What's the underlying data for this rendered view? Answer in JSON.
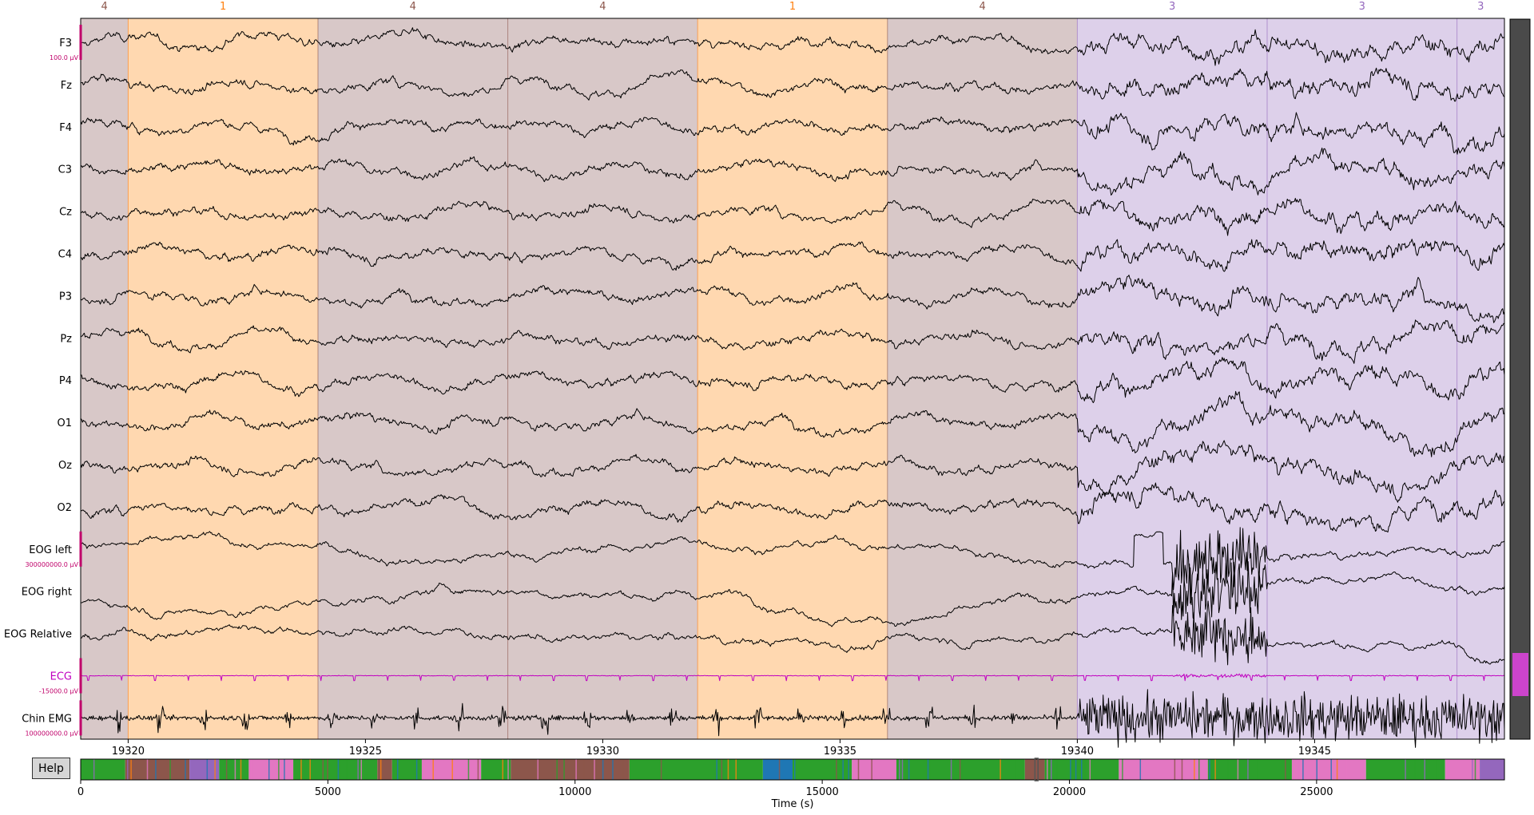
{
  "help_label": "Help",
  "chart_data": [
    {
      "type": "line",
      "title": "",
      "xlabel": "",
      "ylabel": "",
      "xlim": [
        19319.0,
        19349.0
      ],
      "x_ticks": [
        19320,
        19325,
        19330,
        19335,
        19340,
        19345
      ],
      "channels": [
        {
          "name": "F3",
          "color": "#000000",
          "kind": "eeg",
          "scale_label": "100.0 µV"
        },
        {
          "name": "Fz",
          "color": "#000000",
          "kind": "eeg",
          "scale_label": ""
        },
        {
          "name": "F4",
          "color": "#000000",
          "kind": "eeg",
          "scale_label": ""
        },
        {
          "name": "C3",
          "color": "#000000",
          "kind": "eeg",
          "scale_label": ""
        },
        {
          "name": "Cz",
          "color": "#000000",
          "kind": "eeg",
          "scale_label": ""
        },
        {
          "name": "C4",
          "color": "#000000",
          "kind": "eeg",
          "scale_label": ""
        },
        {
          "name": "P3",
          "color": "#000000",
          "kind": "eeg",
          "scale_label": ""
        },
        {
          "name": "Pz",
          "color": "#000000",
          "kind": "eeg",
          "scale_label": ""
        },
        {
          "name": "P4",
          "color": "#000000",
          "kind": "eeg",
          "scale_label": ""
        },
        {
          "name": "O1",
          "color": "#000000",
          "kind": "eeg",
          "scale_label": ""
        },
        {
          "name": "Oz",
          "color": "#000000",
          "kind": "eeg",
          "scale_label": ""
        },
        {
          "name": "O2",
          "color": "#000000",
          "kind": "eeg",
          "scale_label": ""
        },
        {
          "name": "EOG left",
          "color": "#000000",
          "kind": "eog",
          "scale_label": "300000000.0 µV"
        },
        {
          "name": "EOG right",
          "color": "#000000",
          "kind": "eog",
          "scale_label": ""
        },
        {
          "name": "EOG Relative",
          "color": "#000000",
          "kind": "eog",
          "scale_label": ""
        },
        {
          "name": "ECG",
          "color": "#c000c0",
          "kind": "ecg",
          "scale_label": "-15000.0 µV"
        },
        {
          "name": "Chin EMG",
          "color": "#000000",
          "kind": "emg",
          "scale_label": "100000000.0 µV"
        }
      ],
      "annotations": [
        {
          "label": "4",
          "start": 19319.0,
          "end": 19320.0,
          "color": "#d8c8c8",
          "label_color": "#8c564b"
        },
        {
          "label": "1",
          "start": 19320.0,
          "end": 19324.0,
          "color": "#ffd8b0",
          "label_color": "#ff7f0e"
        },
        {
          "label": "4",
          "start": 19324.0,
          "end": 19328.0,
          "color": "#d8c8c8",
          "label_color": "#8c564b"
        },
        {
          "label": "4",
          "start": 19328.0,
          "end": 19332.0,
          "color": "#d8c8c8",
          "label_color": "#8c564b"
        },
        {
          "label": "1",
          "start": 19332.0,
          "end": 19336.0,
          "color": "#ffd8b0",
          "label_color": "#ff7f0e"
        },
        {
          "label": "4",
          "start": 19336.0,
          "end": 19340.0,
          "color": "#d8c8c8",
          "label_color": "#8c564b"
        },
        {
          "label": "3",
          "start": 19340.0,
          "end": 19344.0,
          "color": "#ddd0ea",
          "label_color": "#9467bd"
        },
        {
          "label": "3",
          "start": 19344.0,
          "end": 19348.0,
          "color": "#ddd0ea",
          "label_color": "#9467bd"
        },
        {
          "label": "3",
          "start": 19348.0,
          "end": 19349.0,
          "color": "#ddd0ea",
          "label_color": "#9467bd"
        }
      ]
    },
    {
      "type": "bar",
      "title": "",
      "xlabel": "Time (s)",
      "ylabel": "",
      "xlim": [
        0,
        28800
      ],
      "x_ticks": [
        0,
        5000,
        10000,
        15000,
        20000,
        25000
      ],
      "stage_colors": {
        "1": "#ff7f0e",
        "2": "#2ca02c",
        "3": "#9467bd",
        "4": "#8c564b",
        "W": "#e377c2",
        "R": "#1f77b4"
      },
      "segments": [
        {
          "start": 0,
          "end": 900,
          "stage": "2"
        },
        {
          "start": 900,
          "end": 2200,
          "stage": "4"
        },
        {
          "start": 2200,
          "end": 2800,
          "stage": "3"
        },
        {
          "start": 2800,
          "end": 3400,
          "stage": "2"
        },
        {
          "start": 3400,
          "end": 4300,
          "stage": "W"
        },
        {
          "start": 4300,
          "end": 6000,
          "stage": "2"
        },
        {
          "start": 6000,
          "end": 6300,
          "stage": "4"
        },
        {
          "start": 6300,
          "end": 6900,
          "stage": "2"
        },
        {
          "start": 6900,
          "end": 8100,
          "stage": "W"
        },
        {
          "start": 8100,
          "end": 8700,
          "stage": "2"
        },
        {
          "start": 8700,
          "end": 11100,
          "stage": "4"
        },
        {
          "start": 11100,
          "end": 13800,
          "stage": "2"
        },
        {
          "start": 13800,
          "end": 14400,
          "stage": "R"
        },
        {
          "start": 14400,
          "end": 15600,
          "stage": "2"
        },
        {
          "start": 15600,
          "end": 16500,
          "stage": "W"
        },
        {
          "start": 16500,
          "end": 19100,
          "stage": "2"
        },
        {
          "start": 19100,
          "end": 19500,
          "stage": "4"
        },
        {
          "start": 19500,
          "end": 21000,
          "stage": "2"
        },
        {
          "start": 21000,
          "end": 22800,
          "stage": "W"
        },
        {
          "start": 22800,
          "end": 24500,
          "stage": "2"
        },
        {
          "start": 24500,
          "end": 26000,
          "stage": "W"
        },
        {
          "start": 26000,
          "end": 27600,
          "stage": "2"
        },
        {
          "start": 27600,
          "end": 28300,
          "stage": "W"
        },
        {
          "start": 28300,
          "end": 28800,
          "stage": "3"
        }
      ]
    }
  ]
}
